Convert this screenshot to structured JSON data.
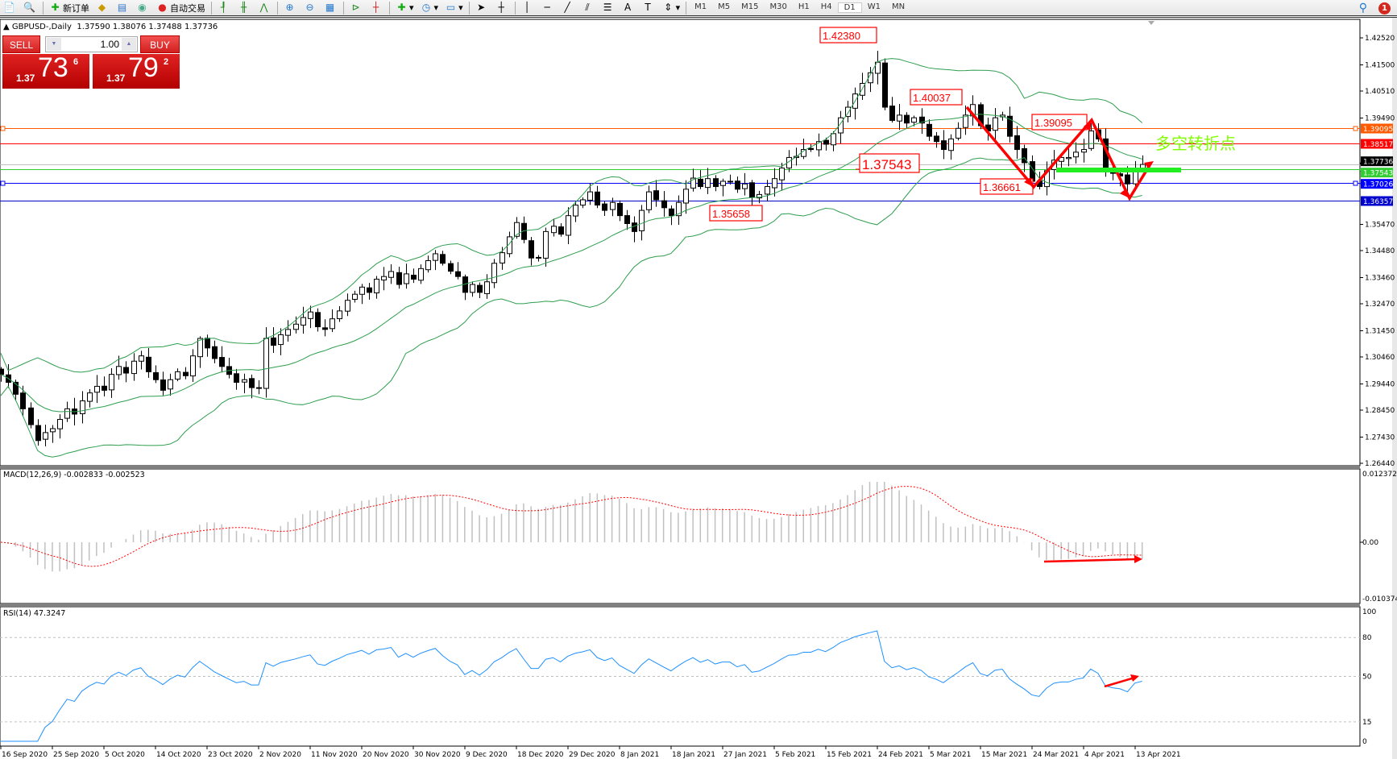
{
  "toolbar": {
    "new_order_label": "新订单",
    "auto_trading_label": "自动交易",
    "timeframes": [
      "M1",
      "M5",
      "M15",
      "M30",
      "H1",
      "H4",
      "D1",
      "W1",
      "MN"
    ],
    "active_timeframe": "D1",
    "notification_count": "1"
  },
  "chart": {
    "title": "GBPUSD-,Daily",
    "ohlc": "1.37590 1.38076 1.37488 1.37736",
    "last_bar": {
      "open": 1.3759,
      "high": 1.38076,
      "low": 1.37488,
      "close": 1.37736
    }
  },
  "trade_panel": {
    "sell_label": "SELL",
    "buy_label": "BUY",
    "lots": "1.00",
    "sell_prefix": "1.37",
    "sell_big": "73",
    "sell_sup": "6",
    "buy_prefix": "1.37",
    "buy_big": "79",
    "buy_sup": "2",
    "color": "#d21f1f"
  },
  "price_axis": {
    "ticks": [
      "1.42520",
      "1.41500",
      "1.40510",
      "1.39490",
      "1.35470",
      "1.34480",
      "1.33460",
      "1.32470",
      "1.31450",
      "1.30460",
      "1.29440",
      "1.28450",
      "1.27430",
      "1.26440"
    ]
  },
  "horizontal_lines": [
    {
      "price": "1.39095",
      "color": "#ff5a00"
    },
    {
      "price": "1.38517",
      "color": "#ff0000"
    },
    {
      "price": "1.37736",
      "color": "#000000",
      "line_color": "#c0c0c0"
    },
    {
      "price": "1.37543",
      "color": "#32cd32"
    },
    {
      "price": "1.37026",
      "color": "#0000ff"
    },
    {
      "price": "1.36357",
      "color": "#0000cc"
    }
  ],
  "annotations": {
    "labels": [
      "1.42380",
      "1.40037",
      "1.39095",
      "1.37543",
      "1.36661",
      "1.35658"
    ],
    "turning_point_text": "多空转折点",
    "annotation_color": "#ff0000",
    "turning_point_color": "#7fff00"
  },
  "candles": {
    "closes": [
      1.298,
      1.295,
      1.2905,
      1.285,
      1.279,
      1.273,
      1.276,
      1.2775,
      1.281,
      1.285,
      1.283,
      1.288,
      1.291,
      1.2935,
      1.292,
      1.298,
      1.301,
      1.2985,
      1.303,
      1.305,
      1.299,
      1.296,
      1.292,
      1.296,
      1.299,
      1.2975,
      1.305,
      1.3116,
      1.308,
      1.304,
      1.301,
      1.298,
      1.295,
      1.296,
      1.293,
      1.293,
      1.3116,
      1.309,
      1.313,
      1.315,
      1.317,
      1.3195,
      1.3216,
      1.316,
      1.315,
      1.319,
      1.322,
      1.326,
      1.3283,
      1.331,
      1.329,
      1.334,
      1.335,
      1.3369,
      1.332,
      1.336,
      1.334,
      1.338,
      1.341,
      1.3436,
      1.34,
      1.337,
      1.335,
      1.329,
      1.332,
      1.329,
      1.333,
      1.34,
      1.344,
      1.35,
      1.3554,
      1.349,
      1.342,
      1.342,
      1.352,
      1.354,
      1.351,
      1.358,
      1.362,
      1.364,
      1.367,
      1.362,
      1.36,
      1.363,
      1.358,
      1.355,
      1.352,
      1.36,
      1.367,
      1.364,
      1.361,
      1.358,
      1.363,
      1.368,
      1.3722,
      1.369,
      1.372,
      1.369,
      1.371,
      1.371,
      1.368,
      1.37,
      1.365,
      1.366,
      1.369,
      1.372,
      1.376,
      1.38,
      1.3804,
      1.383,
      1.383,
      1.386,
      1.385,
      1.389,
      1.395,
      1.399,
      1.404,
      1.408,
      1.412,
      1.416,
      1.399,
      1.394,
      1.396,
      1.393,
      1.395,
      1.393,
      1.388,
      1.386,
      1.383,
      1.387,
      1.391,
      1.396,
      1.4,
      1.392,
      1.39,
      1.395,
      1.396,
      1.388,
      1.383,
      1.378,
      1.371,
      1.369,
      1.375,
      1.379,
      1.38,
      1.38,
      1.382,
      1.383,
      1.39,
      1.387,
      1.376,
      1.374,
      1.373,
      1.37,
      1.376,
      1.37736
    ]
  },
  "bollinger": {
    "color": "#2e9e4e"
  },
  "macd": {
    "label": "MACD(12,26,9) -0.002833 -0.002523",
    "ticks": [
      "0.012372",
      "0.00",
      "-0.010374"
    ],
    "histogram_color": "#c0c0c0",
    "signal_color": "#ff0000"
  },
  "rsi": {
    "label": "RSI(14) 47.3247",
    "ticks": [
      "100",
      "80",
      "50",
      "15",
      "0"
    ],
    "levels": [
      80,
      50,
      15
    ],
    "color": "#1e90ff"
  },
  "date_axis": {
    "labels": [
      "16 Sep 2020",
      "25 Sep 2020",
      "5 Oct 2020",
      "14 Oct 2020",
      "23 Oct 2020",
      "2 Nov 2020",
      "11 Nov 2020",
      "20 Nov 2020",
      "30 Nov 2020",
      "9 Dec 2020",
      "18 Dec 2020",
      "29 Dec 2020",
      "8 Jan 2021",
      "18 Jan 2021",
      "27 Jan 2021",
      "5 Feb 2021",
      "15 Feb 2021",
      "24 Feb 2021",
      "5 Mar 2021",
      "15 Mar 2021",
      "24 Mar 2021",
      "4 Apr 2021",
      "13 Apr 2021"
    ]
  }
}
